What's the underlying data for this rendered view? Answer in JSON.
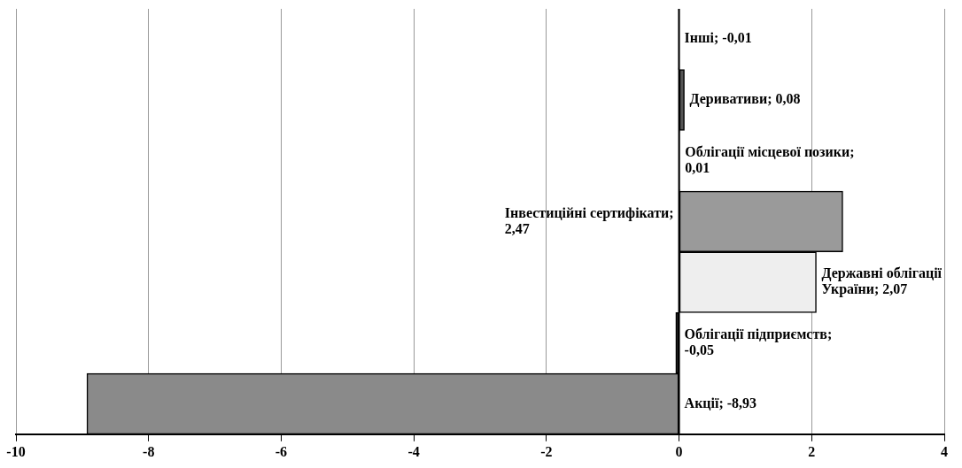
{
  "chart_data": {
    "type": "bar",
    "orientation": "horizontal",
    "categories": [
      null,
      null,
      null,
      null,
      null,
      null,
      null
    ],
    "values": [
      -0.01,
      0.08,
      0.01,
      2.47,
      2.07,
      -0.05,
      -8.93
    ],
    "value_labels": [
      "Інші; -0,01",
      "Деривативи; 0,08",
      "Облігації місцевої позики; 0,01",
      "Інвестиційні сертифікати; 2,47",
      "Державні облігації України; 2,07",
      "Облігації підприємств; -0,05",
      "Акції; -8,93"
    ],
    "colors": [
      "#202020",
      "#555555",
      "#202020",
      "#9a9a9a",
      "#eeeeee",
      "#202020",
      "#8a8a8a"
    ],
    "xlim": [
      -10,
      4
    ],
    "xticks": [
      -10,
      -8,
      -6,
      -4,
      -2,
      0,
      2,
      4
    ],
    "grid": "x",
    "tick_labels": "x",
    "legend": false
  }
}
